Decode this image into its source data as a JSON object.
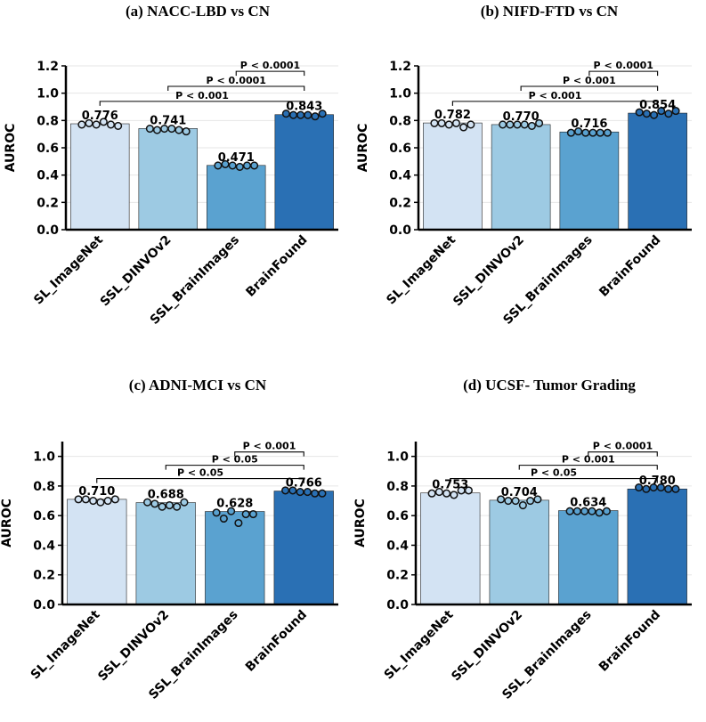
{
  "chart_data": [
    {
      "type": "bar",
      "title": "(a)  NACC-LBD vs CN",
      "ylabel": "AUROC",
      "categories": [
        "SL_ImageNet",
        "SSL_DINVOv2",
        "SSL_BrainImages",
        "BrainFound"
      ],
      "values": [
        0.776,
        0.741,
        0.471,
        0.843
      ],
      "value_labels": [
        "0.776",
        "0.741",
        "0.471",
        "0.843"
      ],
      "points": [
        [
          0.77,
          0.78,
          0.77,
          0.79,
          0.77,
          0.76
        ],
        [
          0.74,
          0.73,
          0.74,
          0.74,
          0.73,
          0.72
        ],
        [
          0.47,
          0.48,
          0.47,
          0.46,
          0.47,
          0.47
        ],
        [
          0.85,
          0.84,
          0.84,
          0.84,
          0.83,
          0.85
        ]
      ],
      "ylim": [
        0,
        1.2
      ],
      "yticks": [
        "0.0",
        "0.2",
        "0.4",
        "0.6",
        "0.8",
        "1.0",
        "1.2"
      ],
      "comparisons": [
        {
          "from": 2,
          "to": 3,
          "label": "P < 0.0001",
          "y": 1.16
        },
        {
          "from": 1,
          "to": 3,
          "label": "P < 0.0001",
          "y": 1.05
        },
        {
          "from": 0,
          "to": 3,
          "label": "P < 0.001",
          "y": 0.94
        }
      ],
      "grid": true
    },
    {
      "type": "bar",
      "title": "(b)  NIFD-FTD vs CN",
      "ylabel": "AUROC",
      "categories": [
        "SL_ImageNet",
        "SSL_DINVOv2",
        "SSL_BrainImages",
        "BrainFound"
      ],
      "values": [
        0.782,
        0.77,
        0.716,
        0.854
      ],
      "value_labels": [
        "0.782",
        "0.770",
        "0.716",
        "0.854"
      ],
      "points": [
        [
          0.78,
          0.78,
          0.77,
          0.78,
          0.75,
          0.77
        ],
        [
          0.77,
          0.77,
          0.77,
          0.77,
          0.76,
          0.78
        ],
        [
          0.71,
          0.72,
          0.71,
          0.71,
          0.71,
          0.71
        ],
        [
          0.86,
          0.85,
          0.84,
          0.87,
          0.85,
          0.87
        ]
      ],
      "ylim": [
        0,
        1.2
      ],
      "yticks": [
        "0.0",
        "0.2",
        "0.4",
        "0.6",
        "0.8",
        "1.0",
        "1.2"
      ],
      "comparisons": [
        {
          "from": 2,
          "to": 3,
          "label": "P < 0.0001",
          "y": 1.16
        },
        {
          "from": 1,
          "to": 3,
          "label": "P < 0.001",
          "y": 1.05
        },
        {
          "from": 0,
          "to": 3,
          "label": "P < 0.001",
          "y": 0.94
        }
      ],
      "grid": true
    },
    {
      "type": "bar",
      "title": "(c)  ADNI-MCI vs CN",
      "ylabel": "AUROC",
      "categories": [
        "SL_ImageNet",
        "SSL_DINVOv2",
        "SSL_BrainImages",
        "BrainFound"
      ],
      "values": [
        0.71,
        0.688,
        0.628,
        0.766
      ],
      "value_labels": [
        "0.710",
        "0.688",
        "0.628",
        "0.766"
      ],
      "points": [
        [
          0.71,
          0.71,
          0.7,
          0.69,
          0.7,
          0.71
        ],
        [
          0.69,
          0.68,
          0.66,
          0.67,
          0.66,
          0.69
        ],
        [
          0.62,
          0.58,
          0.63,
          0.55,
          0.61,
          0.61
        ],
        [
          0.77,
          0.77,
          0.76,
          0.76,
          0.75,
          0.75
        ]
      ],
      "ylim": [
        0,
        1.1
      ],
      "yticks": [
        "0.0",
        "0.2",
        "0.4",
        "0.6",
        "0.8",
        "1.0"
      ],
      "comparisons": [
        {
          "from": 2,
          "to": 3,
          "label": "P < 0.001",
          "y": 1.03
        },
        {
          "from": 1,
          "to": 3,
          "label": "P < 0.05",
          "y": 0.94
        },
        {
          "from": 0,
          "to": 3,
          "label": "P < 0.05",
          "y": 0.85
        }
      ],
      "grid": true
    },
    {
      "type": "bar",
      "title": "(d)  UCSF- Tumor Grading",
      "ylabel": "AUROC",
      "categories": [
        "SL_ImageNet",
        "SSL_DINVOv2",
        "SSL_BrainImages",
        "BrainFound"
      ],
      "values": [
        0.753,
        0.704,
        0.634,
        0.78
      ],
      "value_labels": [
        "0.753",
        "0.704",
        "0.634",
        "0.780"
      ],
      "points": [
        [
          0.75,
          0.76,
          0.75,
          0.74,
          0.77,
          0.77
        ],
        [
          0.71,
          0.7,
          0.7,
          0.67,
          0.7,
          0.71
        ],
        [
          0.63,
          0.63,
          0.63,
          0.63,
          0.62,
          0.63
        ],
        [
          0.79,
          0.78,
          0.79,
          0.79,
          0.78,
          0.78
        ]
      ],
      "ylim": [
        0,
        1.1
      ],
      "yticks": [
        "0.0",
        "0.2",
        "0.4",
        "0.6",
        "0.8",
        "1.0"
      ],
      "comparisons": [
        {
          "from": 2,
          "to": 3,
          "label": "P < 0.0001",
          "y": 1.03
        },
        {
          "from": 1,
          "to": 3,
          "label": "P < 0.001",
          "y": 0.94
        },
        {
          "from": 0,
          "to": 3,
          "label": "P < 0.05",
          "y": 0.85
        }
      ],
      "grid": true
    }
  ],
  "colors": {
    "bars": [
      "#d3e3f3",
      "#9dcae3",
      "#5aa2d0",
      "#2a70b4"
    ],
    "bar_edge": "#222222",
    "point_edge": "#111111",
    "grid": "#e6e6e6",
    "axis": "#000000"
  }
}
